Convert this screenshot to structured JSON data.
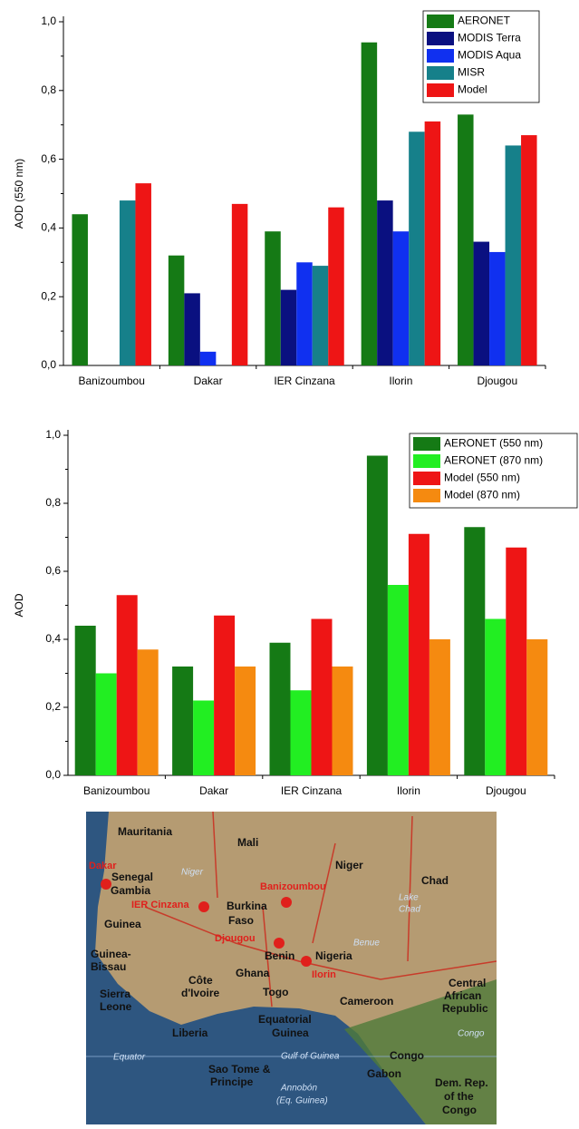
{
  "chart_data": [
    {
      "type": "bar",
      "y_label": "AOD (550 nm)",
      "categories": [
        "Banizoumbou",
        "Dakar",
        "IER Cinzana",
        "Ilorin",
        "Djougou"
      ],
      "series": [
        {
          "name": "AERONET",
          "color": "#157a15",
          "values": [
            0.44,
            0.32,
            0.39,
            0.94,
            0.73
          ]
        },
        {
          "name": "MODIS Terra",
          "color": "#0a1080",
          "values": [
            null,
            0.21,
            0.22,
            0.48,
            0.36
          ]
        },
        {
          "name": "MODIS Aqua",
          "color": "#1030f0",
          "values": [
            null,
            0.04,
            0.3,
            0.39,
            0.33
          ]
        },
        {
          "name": "MISR",
          "color": "#16808a",
          "values": [
            0.48,
            null,
            0.29,
            0.68,
            0.64
          ]
        },
        {
          "name": "Model",
          "color": "#ee1515",
          "values": [
            0.53,
            0.47,
            0.46,
            0.71,
            0.67
          ]
        }
      ],
      "ylim": [
        0,
        1
      ],
      "yticks": [
        {
          "value": 0,
          "label": "0,0"
        },
        {
          "value": 0.2,
          "label": "0,2"
        },
        {
          "value": 0.4,
          "label": "0,4"
        },
        {
          "value": 0.6,
          "label": "0,6"
        },
        {
          "value": 0.8,
          "label": "0,8"
        },
        {
          "value": 1,
          "label": "1,0"
        }
      ],
      "legend": "upper right"
    },
    {
      "type": "bar",
      "y_label": "AOD",
      "categories": [
        "Banizoumbou",
        "Dakar",
        "IER Cinzana",
        "Ilorin",
        "Djougou"
      ],
      "series": [
        {
          "name": "AERONET (550 nm)",
          "color": "#157a15",
          "values": [
            0.44,
            0.32,
            0.39,
            0.94,
            0.73
          ]
        },
        {
          "name": "AERONET (870 nm)",
          "color": "#22ee22",
          "values": [
            0.3,
            0.22,
            0.25,
            0.56,
            0.46
          ]
        },
        {
          "name": "Model (550 nm)",
          "color": "#ee1515",
          "values": [
            0.53,
            0.47,
            0.46,
            0.71,
            0.67
          ]
        },
        {
          "name": "Model (870 nm)",
          "color": "#f58a10",
          "values": [
            0.37,
            0.32,
            0.32,
            0.4,
            0.4
          ]
        }
      ],
      "ylim": [
        0,
        1
      ],
      "yticks": [
        {
          "value": 0,
          "label": "0,0"
        },
        {
          "value": 0.2,
          "label": "0,2"
        },
        {
          "value": 0.4,
          "label": "0,4"
        },
        {
          "value": 0.6,
          "label": "0,6"
        },
        {
          "value": 0.8,
          "label": "0,8"
        },
        {
          "value": 1,
          "label": "1,0"
        }
      ],
      "legend": "upper right"
    }
  ],
  "map": {
    "countries": [
      "Mauritania",
      "Mali",
      "Niger",
      "Chad",
      "Senegal",
      "Gambia",
      "Burkina",
      "Faso",
      "Guinea",
      "Benin",
      "Nigeria",
      "Guinea-",
      "Bissau",
      "Côte",
      "d'Ivoire",
      "Ghana",
      "Sierra",
      "Leone",
      "Togo",
      "Liberia",
      "Cameroon",
      "Central",
      "African",
      "Republic",
      "Equatorial",
      "Guinea",
      "Gabon",
      "Congo",
      "Dem. Rep.",
      "of the",
      "Congo",
      "Sao Tome &",
      "Principe",
      "Annobón",
      "(Eq. Guinea)"
    ],
    "sites": [
      "Dakar",
      "IER Cinzana",
      "Banizoumbou",
      "Djougou",
      "Ilorin"
    ],
    "features": [
      "Lake",
      "Chad",
      "Niger",
      "Benue",
      "Equator",
      "Gulf of Guinea",
      "Congo"
    ]
  }
}
